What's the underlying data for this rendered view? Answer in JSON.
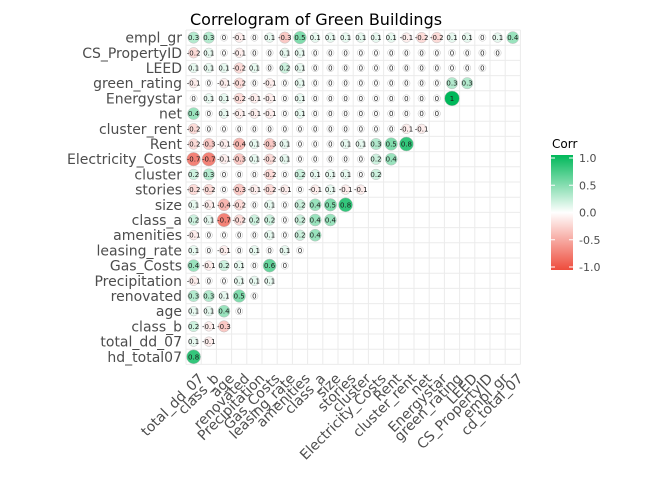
{
  "chart_data": {
    "type": "heatmap",
    "title": "Correlogram of Green Buildings",
    "variables": [
      "hd_total07",
      "total_dd_07",
      "class_b",
      "age",
      "renovated",
      "Precipitation",
      "Gas_Costs",
      "leasing_rate",
      "amenities",
      "class_a",
      "size",
      "stories",
      "cluster",
      "Electricity_Costs",
      "Rent",
      "cluster_rent",
      "net",
      "Energystar",
      "green_rating",
      "LEED",
      "CS_PropertyID",
      "empl_gr",
      "cd_total_07"
    ],
    "x_labels": [
      "total_dd_07",
      "class_b",
      "age",
      "renovated",
      "Precipitation",
      "Gas_Costs",
      "leasing_rate",
      "amenities",
      "class_a",
      "size",
      "stories",
      "cluster",
      "Electricity_Costs",
      "Rent",
      "cluster_rent",
      "net",
      "Energystar",
      "green_rating",
      "LEED",
      "CS_PropertyID",
      "empl_gr",
      "cd_total_07"
    ],
    "y_labels": [
      "hd_total07",
      "total_dd_07",
      "class_b",
      "age",
      "renovated",
      "Precipitation",
      "Gas_Costs",
      "leasing_rate",
      "amenities",
      "class_a",
      "size",
      "stories",
      "cluster",
      "Electricity_Costs",
      "Rent",
      "cluster_rent",
      "net",
      "Energystar",
      "green_rating",
      "LEED",
      "CS_PropertyID",
      "empl_gr"
    ],
    "cells": [
      [
        0.8
      ],
      [
        0.1,
        -0.1
      ],
      [
        0.2,
        -0.1,
        -0.3
      ],
      [
        0.1,
        0.1,
        0.4,
        0
      ],
      [
        0.3,
        0.3,
        0.1,
        0.5,
        0
      ],
      [
        -0.1,
        0,
        0,
        0.1,
        0.1,
        0.1
      ],
      [
        0.4,
        -0.1,
        0.2,
        0.1,
        0,
        0.6,
        0
      ],
      [
        0.1,
        0,
        -0.1,
        0,
        0.1,
        0,
        0.1,
        0
      ],
      [
        -0.1,
        0,
        0,
        0,
        0,
        0.1,
        0,
        0.2,
        0.4
      ],
      [
        0.2,
        0.1,
        -0.7,
        -0.2,
        0.2,
        0.2,
        0,
        0.2,
        0.4,
        0.4
      ],
      [
        0.1,
        -0.1,
        -0.4,
        -0.2,
        0,
        0.1,
        0,
        0.2,
        0.4,
        0.5,
        0.8
      ],
      [
        -0.2,
        -0.2,
        0,
        -0.3,
        -0.1,
        -0.2,
        -0.1,
        0,
        -0.1,
        0.1,
        -0.1,
        -0.1
      ],
      [
        0.2,
        0.3,
        0,
        0,
        0,
        -0.2,
        0,
        0.2,
        0.1,
        0.1,
        0.1,
        0,
        0.2
      ],
      [
        -0.7,
        -0.7,
        -0.1,
        -0.3,
        0.1,
        -0.2,
        0.1,
        0,
        0,
        0,
        0,
        0,
        0.2,
        0.4
      ],
      [
        -0.2,
        -0.3,
        -0.1,
        -0.4,
        0.1,
        -0.3,
        0.1,
        0,
        0,
        0,
        0.1,
        0.1,
        0.3,
        0.5,
        0.8
      ],
      [
        -0.2,
        0,
        0,
        0,
        0,
        0,
        0,
        0,
        0,
        0,
        0,
        0,
        0,
        0,
        -0.1,
        -0.1
      ],
      [
        0.4,
        0,
        0.1,
        -0.1,
        -0.1,
        -0.1,
        0,
        0.1,
        0,
        0,
        0,
        0,
        0,
        0,
        0,
        0,
        0
      ],
      [
        0,
        0.1,
        0.1,
        -0.2,
        -0.1,
        -0.1,
        0,
        0.1,
        0,
        0,
        0,
        0,
        0,
        0,
        0,
        0,
        0,
        1
      ],
      [
        -0.1,
        0,
        -0.1,
        -0.2,
        0,
        -0.1,
        0,
        0.1,
        0,
        0,
        0,
        0,
        0,
        0,
        0,
        0,
        0,
        0.3,
        0.3
      ],
      [
        0.1,
        0.1,
        0.1,
        -0.2,
        0.1,
        0,
        0.2,
        0.1,
        0,
        0,
        0,
        0,
        0,
        0,
        0,
        0,
        0,
        0,
        0,
        0
      ],
      [
        -0.2,
        0.1,
        0,
        -0.1,
        0,
        0,
        0.1,
        0.1,
        0,
        0,
        0,
        0,
        0,
        0,
        0,
        0,
        0,
        0,
        0,
        0,
        0
      ],
      [
        0.3,
        0.3,
        0,
        -0.1,
        0,
        0.1,
        -0.3,
        0.5,
        0.1,
        0.1,
        0.1,
        0.1,
        0.1,
        0.1,
        -0.1,
        -0.2,
        -0.2,
        0.1,
        0.1,
        0,
        0.1,
        0.4
      ]
    ],
    "legend": {
      "title": "Corr",
      "ticks": [
        1.0,
        0.5,
        0.0,
        -0.5,
        -1.0
      ],
      "tick_labels": [
        "1.0",
        "0.5",
        "0.0",
        "-0.5",
        "-1.0"
      ],
      "range": [
        -1,
        1
      ],
      "colors": {
        "positive": "#00b85a",
        "zero": "#ffffff",
        "negative": "#ee4c3c"
      },
      "position": "right"
    },
    "grid": true,
    "cell_style": "circle"
  }
}
